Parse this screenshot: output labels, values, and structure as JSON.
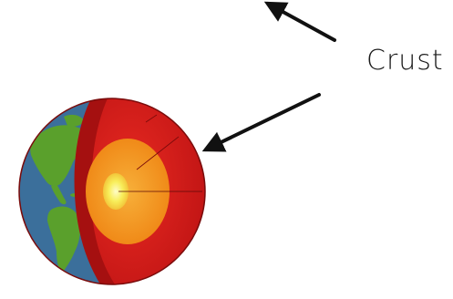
{
  "diagram": {
    "label": "Crust",
    "colors": {
      "ocean": "#3b6f9b",
      "land": "#5aa02c",
      "crust": "#b31515",
      "mantle": "#e11f1f",
      "outer_core": "#f39a1c",
      "inner_core": "#fbef5a",
      "arrow": "#111111"
    }
  }
}
